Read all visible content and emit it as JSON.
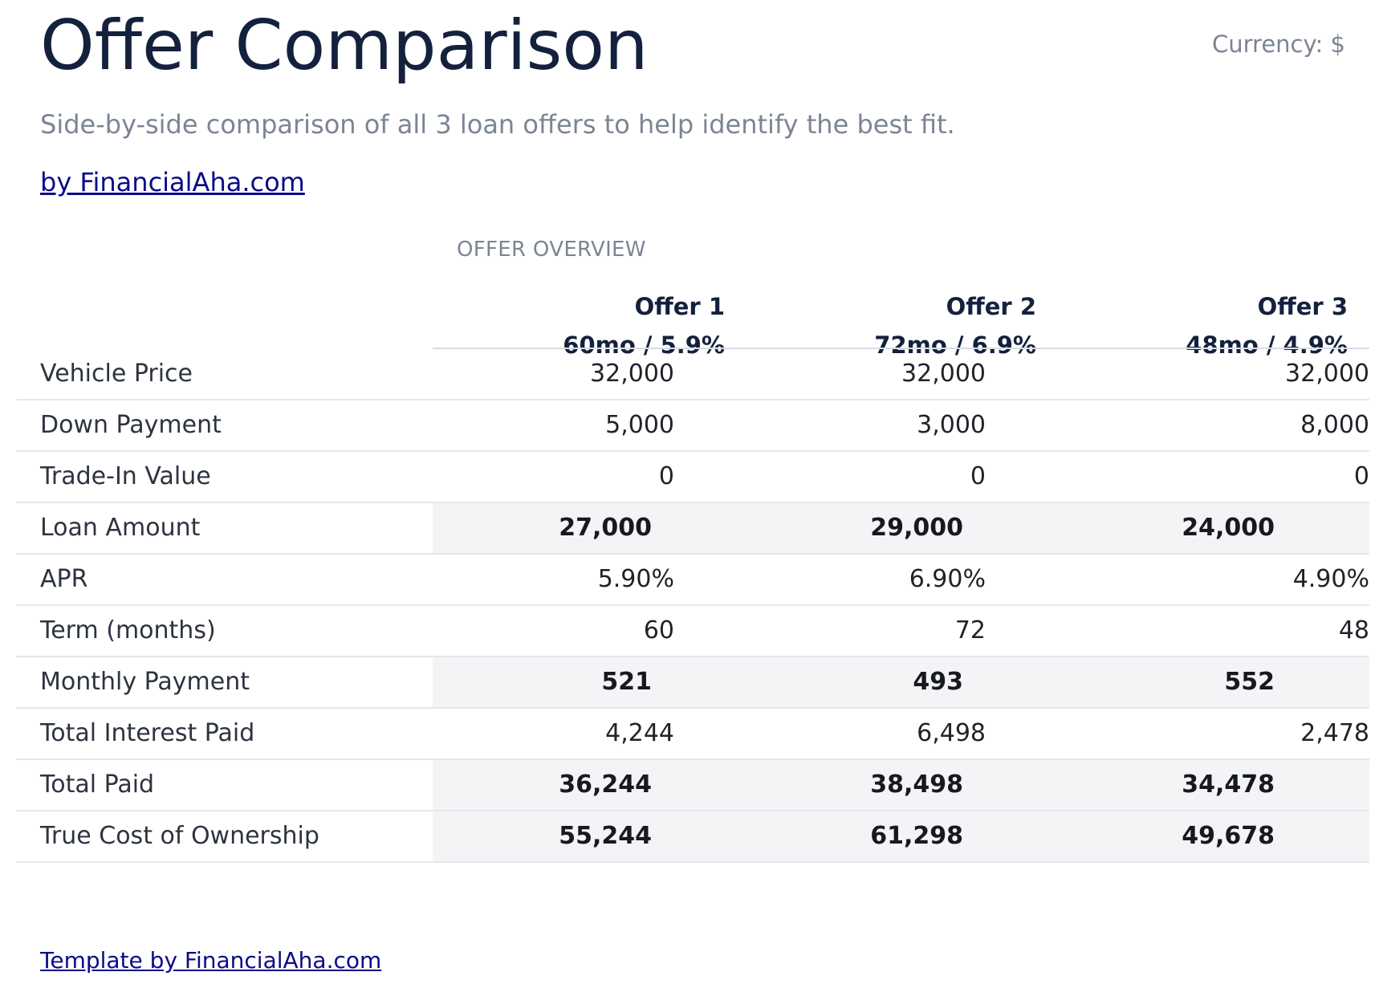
{
  "header": {
    "title": "Offer Comparison",
    "currency": "Currency: $",
    "subtitle": "Side-by-side comparison of all 3 loan offers to help identify the best fit.",
    "byline": "by FinancialAha.com"
  },
  "table": {
    "section_label": "OFFER OVERVIEW",
    "offers": [
      {
        "name": "Offer 1",
        "detail": "60mo / 5.9%"
      },
      {
        "name": "Offer 2",
        "detail": "72mo / 6.9%"
      },
      {
        "name": "Offer 3",
        "detail": "48mo / 4.9%"
      }
    ],
    "rows": [
      {
        "label": "Vehicle Price",
        "highlight": false,
        "values": [
          "32,000",
          "32,000",
          "32,000"
        ]
      },
      {
        "label": "Down Payment",
        "highlight": false,
        "values": [
          "5,000",
          "3,000",
          "8,000"
        ]
      },
      {
        "label": "Trade-In Value",
        "highlight": false,
        "values": [
          "0",
          "0",
          "0"
        ]
      },
      {
        "label": "Loan Amount",
        "highlight": true,
        "values": [
          "27,000",
          "29,000",
          "24,000"
        ]
      },
      {
        "label": "APR",
        "highlight": false,
        "values": [
          "5.90%",
          "6.90%",
          "4.90%"
        ]
      },
      {
        "label": "Term (months)",
        "highlight": false,
        "values": [
          "60",
          "72",
          "48"
        ]
      },
      {
        "label": "Monthly Payment",
        "highlight": true,
        "values": [
          "521",
          "493",
          "552"
        ]
      },
      {
        "label": "Total Interest Paid",
        "highlight": false,
        "values": [
          "4,244",
          "6,498",
          "2,478"
        ]
      },
      {
        "label": "Total Paid",
        "highlight": true,
        "values": [
          "36,244",
          "38,498",
          "34,478"
        ]
      },
      {
        "label": "True Cost of Ownership",
        "highlight": true,
        "values": [
          "55,244",
          "61,298",
          "49,678"
        ]
      }
    ]
  },
  "footer": {
    "link": "Template by FinancialAha.com"
  }
}
